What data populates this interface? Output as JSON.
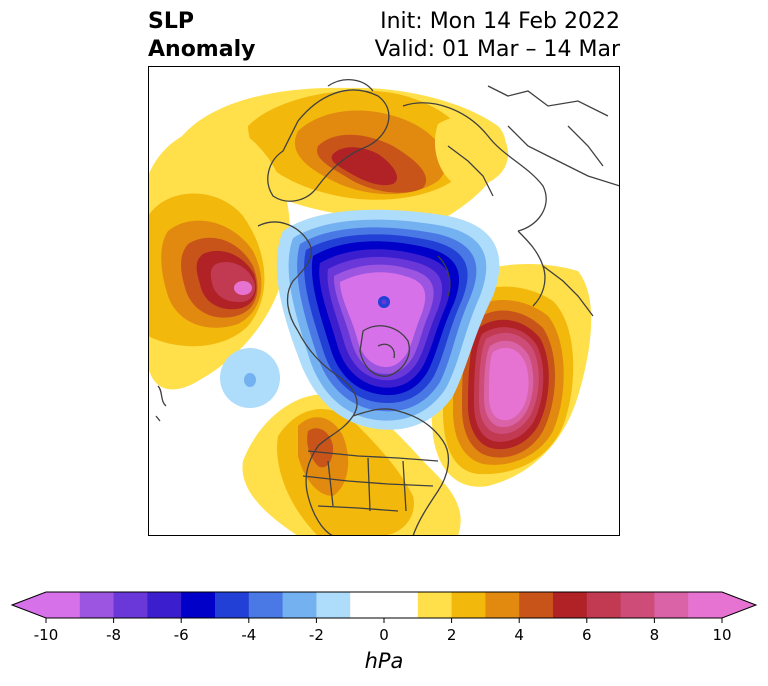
{
  "title": {
    "left_line1": "SLP",
    "left_line2": "Anomaly",
    "init": "Init: Mon 14 Feb 2022",
    "valid": "Valid: 01 Mar – 14 Mar"
  },
  "colorbar": {
    "unit": "hPa",
    "ticks": [
      "-10",
      "-8",
      "-6",
      "-4",
      "-2",
      "0",
      "2",
      "4",
      "6",
      "8",
      "10"
    ],
    "levels": [
      -10,
      -9,
      -8,
      -7,
      -6,
      -5,
      -4,
      -3,
      -2,
      -1,
      1,
      2,
      3,
      4,
      5,
      6,
      7,
      8,
      9,
      10
    ],
    "colors": [
      "#d771ea",
      "#9b55e0",
      "#6a38d8",
      "#3b1fcf",
      "#0000c9",
      "#2240d6",
      "#4a79e6",
      "#74b1f0",
      "#aedcfb",
      "#ffffff",
      "#ffe04a",
      "#f3b80c",
      "#e18a0f",
      "#c8541a",
      "#b02225",
      "#c23a52",
      "#ce4c78",
      "#d963a6",
      "#e673d2"
    ],
    "extend": "both"
  },
  "colors": {
    "coastline": "#404040",
    "background": "#ffffff"
  }
}
